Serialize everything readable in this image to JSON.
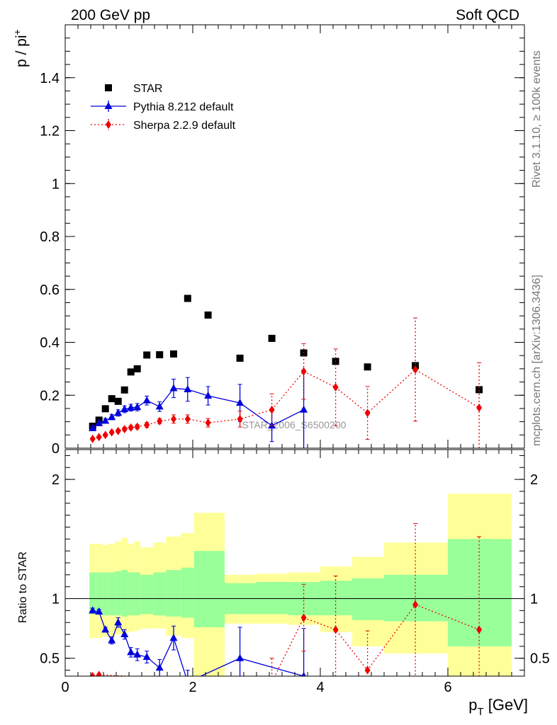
{
  "header": {
    "left": "200 GeV pp",
    "right": "Soft QCD"
  },
  "side": {
    "rivet": "Rivet 3.1.10, ≥ 100k events",
    "mcplots": "mcplots.cern.ch [arXiv:1306.3436]"
  },
  "watermark": "STAR_2006_S6500200",
  "chart_data": [
    {
      "type": "scatter",
      "panel": "main",
      "ylabel_base": "p / pi",
      "ylabel_sup": "+",
      "xlim": [
        0,
        7.2
      ],
      "ylim": [
        0,
        1.6
      ],
      "yticks": [
        {
          "v": 0,
          "label": "0"
        },
        {
          "v": 0.2,
          "label": "0.2"
        },
        {
          "v": 0.4,
          "label": "0.4"
        },
        {
          "v": 0.6,
          "label": "0.6"
        },
        {
          "v": 0.8,
          "label": "0.8"
        },
        {
          "v": 1.0,
          "label": "1"
        },
        {
          "v": 1.2,
          "label": "1.2"
        },
        {
          "v": 1.4,
          "label": "1.4"
        }
      ],
      "legend": [
        "STAR",
        "Pythia 8.212 default",
        "Sherpa 2.2.9 default"
      ],
      "series": [
        {
          "name": "STAR",
          "color": "#000000",
          "marker": "square",
          "x": [
            0.43,
            0.53,
            0.63,
            0.73,
            0.83,
            0.93,
            1.03,
            1.13,
            1.28,
            1.48,
            1.7,
            1.92,
            2.24,
            2.74,
            3.24,
            3.74,
            4.24,
            4.74,
            5.49,
            6.49
          ],
          "y": [
            0.083,
            0.106,
            0.149,
            0.187,
            0.177,
            0.22,
            0.288,
            0.3,
            0.352,
            0.353,
            0.356,
            0.566,
            0.503,
            0.34,
            0.415,
            0.36,
            0.328,
            0.307,
            0.312,
            0.221
          ]
        },
        {
          "name": "Pythia 8.212 default",
          "color": "#0000dd",
          "marker": "triangle",
          "line": "solid",
          "x": [
            0.43,
            0.53,
            0.63,
            0.73,
            0.83,
            0.93,
            1.03,
            1.13,
            1.28,
            1.48,
            1.7,
            1.92,
            2.24,
            2.74,
            3.24,
            3.74
          ],
          "y": [
            0.075,
            0.094,
            0.103,
            0.117,
            0.133,
            0.147,
            0.153,
            0.155,
            0.18,
            0.157,
            0.226,
            0.222,
            0.198,
            0.171,
            0.085,
            0.145
          ],
          "err": [
            0.008,
            0.008,
            0.009,
            0.01,
            0.012,
            0.013,
            0.013,
            0.014,
            0.017,
            0.018,
            0.035,
            0.045,
            0.035,
            0.07,
            0.06,
            0.15
          ]
        },
        {
          "name": "Sherpa 2.2.9 default",
          "color": "#ee0000",
          "marker": "diamond",
          "line": "dotted",
          "x": [
            0.43,
            0.53,
            0.63,
            0.73,
            0.83,
            0.93,
            1.03,
            1.13,
            1.28,
            1.48,
            1.7,
            1.92,
            2.24,
            2.74,
            3.24,
            3.74,
            4.24,
            4.74,
            5.49,
            6.49
          ],
          "y": [
            0.035,
            0.042,
            0.05,
            0.06,
            0.065,
            0.072,
            0.078,
            0.081,
            0.088,
            0.102,
            0.11,
            0.11,
            0.096,
            0.11,
            0.145,
            0.29,
            0.23,
            0.133,
            0.297,
            0.153
          ],
          "err": [
            0.004,
            0.004,
            0.005,
            0.006,
            0.006,
            0.007,
            0.007,
            0.008,
            0.009,
            0.01,
            0.016,
            0.016,
            0.016,
            0.03,
            0.06,
            0.105,
            0.145,
            0.1,
            0.195,
            0.17
          ]
        }
      ]
    },
    {
      "type": "scatter",
      "panel": "ratio",
      "ylabel": "Ratio to STAR",
      "xlabel": "p",
      "xlabel_sub": "T",
      "xlabel_unit": " [GeV]",
      "xlim": [
        0,
        7.2
      ],
      "ylim": [
        0.35,
        2.25
      ],
      "xticks": [
        {
          "v": 0,
          "label": "0"
        },
        {
          "v": 2,
          "label": "2"
        },
        {
          "v": 4,
          "label": "4"
        },
        {
          "v": 6,
          "label": "6"
        }
      ],
      "yticks": [
        {
          "v": 0.5,
          "label": "0.5"
        },
        {
          "v": 1,
          "label": "1"
        },
        {
          "v": 2,
          "label": "2"
        }
      ],
      "bands": [
        {
          "x0": 0.38,
          "x1": 0.48,
          "y_lo": 0.87,
          "y_hi": 1.22,
          "yel_lo": 0.67,
          "yel_hi": 1.46
        },
        {
          "x0": 0.48,
          "x1": 0.58,
          "y_lo": 0.87,
          "y_hi": 1.22,
          "yel_lo": 0.67,
          "yel_hi": 1.46
        },
        {
          "x0": 0.58,
          "x1": 0.68,
          "y_lo": 0.86,
          "y_hi": 1.22,
          "yel_lo": 0.68,
          "yel_hi": 1.45
        },
        {
          "x0": 0.68,
          "x1": 0.78,
          "y_lo": 0.86,
          "y_hi": 1.22,
          "yel_lo": 0.68,
          "yel_hi": 1.46
        },
        {
          "x0": 0.78,
          "x1": 0.88,
          "y_lo": 0.86,
          "y_hi": 1.23,
          "yel_lo": 0.7,
          "yel_hi": 1.48
        },
        {
          "x0": 0.88,
          "x1": 0.98,
          "y_lo": 0.85,
          "y_hi": 1.24,
          "yel_lo": 0.68,
          "yel_hi": 1.51
        },
        {
          "x0": 0.98,
          "x1": 1.08,
          "y_lo": 0.86,
          "y_hi": 1.22,
          "yel_lo": 0.72,
          "yel_hi": 1.46
        },
        {
          "x0": 1.08,
          "x1": 1.18,
          "y_lo": 0.86,
          "y_hi": 1.22,
          "yel_lo": 0.73,
          "yel_hi": 1.48
        },
        {
          "x0": 1.18,
          "x1": 1.38,
          "y_lo": 0.87,
          "y_hi": 1.2,
          "yel_lo": 0.75,
          "yel_hi": 1.43
        },
        {
          "x0": 1.38,
          "x1": 1.58,
          "y_lo": 0.86,
          "y_hi": 1.22,
          "yel_lo": 0.75,
          "yel_hi": 1.47
        },
        {
          "x0": 1.58,
          "x1": 1.82,
          "y_lo": 0.85,
          "y_hi": 1.24,
          "yel_lo": 0.69,
          "yel_hi": 1.52
        },
        {
          "x0": 1.82,
          "x1": 2.02,
          "y_lo": 0.84,
          "y_hi": 1.26,
          "yel_lo": 0.67,
          "yel_hi": 1.55
        },
        {
          "x0": 2.02,
          "x1": 2.5,
          "y_lo": 0.76,
          "y_hi": 1.4,
          "yel_lo": 0.32,
          "yel_hi": 1.72
        },
        {
          "x0": 2.5,
          "x1": 3.0,
          "y_lo": 0.87,
          "y_hi": 1.13,
          "yel_lo": 0.79,
          "yel_hi": 1.2
        },
        {
          "x0": 3.0,
          "x1": 3.5,
          "y_lo": 0.87,
          "y_hi": 1.14,
          "yel_lo": 0.79,
          "yel_hi": 1.21
        },
        {
          "x0": 3.5,
          "x1": 4.0,
          "y_lo": 0.86,
          "y_hi": 1.14,
          "yel_lo": 0.78,
          "yel_hi": 1.22
        },
        {
          "x0": 4.0,
          "x1": 4.5,
          "y_lo": 0.86,
          "y_hi": 1.15,
          "yel_lo": 0.72,
          "yel_hi": 1.27
        },
        {
          "x0": 4.5,
          "x1": 5.0,
          "y_lo": 0.82,
          "y_hi": 1.17,
          "yel_lo": 0.6,
          "yel_hi": 1.35
        },
        {
          "x0": 5.0,
          "x1": 6.0,
          "y_lo": 0.81,
          "y_hi": 1.2,
          "yel_lo": 0.54,
          "yel_hi": 1.47
        },
        {
          "x0": 6.0,
          "x1": 7.0,
          "y_lo": 0.6,
          "y_hi": 1.5,
          "yel_lo": 0.2,
          "yel_hi": 1.88
        }
      ],
      "reference_line": 1,
      "series": [
        {
          "name": "Pythia 8.212 default",
          "color": "#0000dd",
          "marker": "triangle",
          "line": "solid",
          "x": [
            0.43,
            0.53,
            0.63,
            0.73,
            0.83,
            0.93,
            1.03,
            1.13,
            1.28,
            1.48,
            1.7,
            1.92,
            2.74,
            3.74
          ],
          "y": [
            0.9,
            0.89,
            0.74,
            0.65,
            0.8,
            0.7,
            0.55,
            0.53,
            0.51,
            0.42,
            0.67,
            0.3,
            0.5,
            0.35
          ],
          "err": [
            0.02,
            0.02,
            0.02,
            0.03,
            0.04,
            0.04,
            0.04,
            0.05,
            0.05,
            0.07,
            0.1,
            0.1,
            0.26,
            0.4
          ]
        },
        {
          "name": "Sherpa 2.2.9 default",
          "color": "#ee0000",
          "marker": "diamond",
          "line": "dotted",
          "x": [
            0.43,
            0.53,
            3.24,
            3.74,
            4.24,
            4.74,
            5.49,
            6.49
          ],
          "y": [
            0.35,
            0.36,
            0.3,
            0.84,
            0.74,
            0.4,
            0.95,
            0.74
          ],
          "err": [
            0.01,
            0.01,
            0.2,
            0.28,
            0.45,
            0.33,
            0.68,
            0.78
          ]
        }
      ]
    }
  ]
}
